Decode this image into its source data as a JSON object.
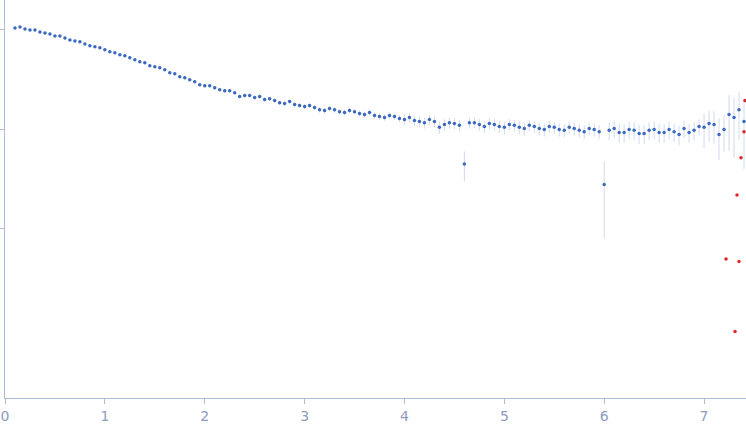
{
  "chart_data": {
    "type": "scatter",
    "log": "y",
    "grid": false,
    "tick_labels": "x",
    "xlim": [
      0,
      7.42
    ],
    "xticks": [
      0,
      1,
      2,
      3,
      4,
      5,
      6,
      7
    ],
    "ylim": [
      0.0002,
      2
    ],
    "yticks": [
      0.01,
      0.1,
      1
    ],
    "series": [
      {
        "color": "#3b69c2",
        "marker": "circle",
        "x": [
          0.1,
          0.15,
          0.2,
          0.25,
          0.3,
          0.35,
          0.4,
          0.45,
          0.5,
          0.55,
          0.6,
          0.65,
          0.7,
          0.75,
          0.8,
          0.85,
          0.9,
          0.95,
          1.0,
          1.05,
          1.1,
          1.15,
          1.2,
          1.25,
          1.3,
          1.35,
          1.4,
          1.45,
          1.5,
          1.55,
          1.6,
          1.65,
          1.7,
          1.75,
          1.8,
          1.85,
          1.9,
          1.95,
          2.0,
          2.05,
          2.1,
          2.15,
          2.2,
          2.25,
          2.3,
          2.35,
          2.4,
          2.45,
          2.5,
          2.55,
          2.6,
          2.65,
          2.7,
          2.75,
          2.8,
          2.85,
          2.9,
          2.95,
          3.0,
          3.05,
          3.1,
          3.15,
          3.2,
          3.25,
          3.3,
          3.35,
          3.4,
          3.45,
          3.5,
          3.55,
          3.6,
          3.65,
          3.7,
          3.75,
          3.8,
          3.85,
          3.9,
          3.95,
          4.0,
          4.05,
          4.1,
          4.15,
          4.2,
          4.25,
          4.3,
          4.35,
          4.4,
          4.45,
          4.5,
          4.55,
          4.6,
          4.65,
          4.7,
          4.75,
          4.8,
          4.85,
          4.9,
          4.95,
          5.0,
          5.05,
          5.1,
          5.15,
          5.2,
          5.25,
          5.3,
          5.35,
          5.4,
          5.45,
          5.5,
          5.55,
          5.6,
          5.65,
          5.7,
          5.75,
          5.8,
          5.85,
          5.9,
          5.95,
          6.0,
          6.05,
          6.1,
          6.15,
          6.2,
          6.25,
          6.3,
          6.35,
          6.4,
          6.45,
          6.5,
          6.55,
          6.6,
          6.65,
          6.7,
          6.75,
          6.8,
          6.85,
          6.9,
          6.95,
          7.0,
          7.05,
          7.1,
          7.15,
          7.2,
          7.25,
          7.3,
          7.35,
          7.4
        ],
        "values": [
          1.047,
          1.072,
          1.023,
          1.0,
          1.0,
          0.955,
          0.933,
          0.912,
          0.871,
          0.871,
          0.832,
          0.794,
          0.776,
          0.759,
          0.724,
          0.692,
          0.676,
          0.661,
          0.631,
          0.603,
          0.589,
          0.562,
          0.55,
          0.525,
          0.501,
          0.479,
          0.468,
          0.437,
          0.427,
          0.417,
          0.398,
          0.372,
          0.363,
          0.339,
          0.331,
          0.316,
          0.302,
          0.282,
          0.275,
          0.275,
          0.263,
          0.251,
          0.245,
          0.245,
          0.234,
          0.214,
          0.219,
          0.219,
          0.209,
          0.214,
          0.2,
          0.204,
          0.195,
          0.186,
          0.182,
          0.191,
          0.178,
          0.174,
          0.17,
          0.174,
          0.166,
          0.158,
          0.155,
          0.162,
          0.158,
          0.151,
          0.148,
          0.155,
          0.151,
          0.145,
          0.141,
          0.148,
          0.138,
          0.135,
          0.132,
          0.138,
          0.135,
          0.129,
          0.126,
          0.132,
          0.123,
          0.12,
          0.117,
          0.126,
          0.12,
          0.105,
          0.112,
          0.117,
          0.115,
          0.11,
          0.045,
          0.117,
          0.117,
          0.112,
          0.107,
          0.115,
          0.112,
          0.107,
          0.105,
          0.112,
          0.11,
          0.105,
          0.102,
          0.11,
          0.107,
          0.102,
          0.1,
          0.107,
          0.105,
          0.1,
          0.098,
          0.105,
          0.102,
          0.098,
          0.095,
          0.102,
          0.1,
          0.095,
          0.028,
          0.098,
          0.102,
          0.093,
          0.093,
          0.1,
          0.098,
          0.091,
          0.091,
          0.098,
          0.1,
          0.093,
          0.093,
          0.1,
          0.095,
          0.089,
          0.102,
          0.093,
          0.098,
          0.107,
          0.105,
          0.115,
          0.112,
          0.089,
          0.1,
          0.141,
          0.132,
          0.158,
          0.12
        ],
        "errors": [
          0.01,
          0.01,
          0.01,
          0.01,
          0.01,
          0.01,
          0.01,
          0.01,
          0.01,
          0.01,
          0.01,
          0.01,
          0.01,
          0.01,
          0.01,
          0.01,
          0.01,
          0.01,
          0.01,
          0.01,
          0.01,
          0.01,
          0.01,
          0.01,
          0.01,
          0.01,
          0.01,
          0.01,
          0.01,
          0.01,
          0.01,
          0.01,
          0.01,
          0.01,
          0.01,
          0.01,
          0.01,
          0.01,
          0.01,
          0.01,
          0.01,
          0.01,
          0.01,
          0.01,
          0.01,
          0.01,
          0.01,
          0.01,
          0.01,
          0.01,
          0.01,
          0.01,
          0.01,
          0.01,
          0.01,
          0.01,
          0.01,
          0.01,
          0.01,
          0.01,
          0.01,
          0.01,
          0.01,
          0.01,
          0.01,
          0.01,
          0.01,
          0.01,
          0.01,
          0.01,
          0.01,
          0.01,
          0.01,
          0.01,
          0.01,
          0.01,
          0.01,
          0.01,
          0.015,
          0.015,
          0.015,
          0.015,
          0.015,
          0.015,
          0.015,
          0.015,
          0.015,
          0.015,
          0.015,
          0.015,
          0.015,
          0.015,
          0.015,
          0.015,
          0.015,
          0.015,
          0.015,
          0.015,
          0.015,
          0.015,
          0.015,
          0.015,
          0.015,
          0.015,
          0.015,
          0.015,
          0.015,
          0.015,
          0.015,
          0.015,
          0.015,
          0.015,
          0.015,
          0.015,
          0.015,
          0.015,
          0.015,
          0.015,
          0.02,
          0.02,
          0.02,
          0.02,
          0.02,
          0.02,
          0.02,
          0.02,
          0.02,
          0.02,
          0.02,
          0.02,
          0.02,
          0.02,
          0.02,
          0.02,
          0.02,
          0.02,
          0.02,
          0.02,
          0.04,
          0.04,
          0.04,
          0.04,
          0.04,
          0.08,
          0.08,
          0.08,
          0.08
        ]
      },
      {
        "color": "#e02828",
        "marker": "circle",
        "x": [
          7.22,
          7.31,
          7.33,
          7.35,
          7.37,
          7.4,
          7.41
        ],
        "values": [
          0.005,
          0.00093,
          0.022,
          0.0047,
          0.052,
          0.095,
          0.195
        ]
      }
    ]
  }
}
